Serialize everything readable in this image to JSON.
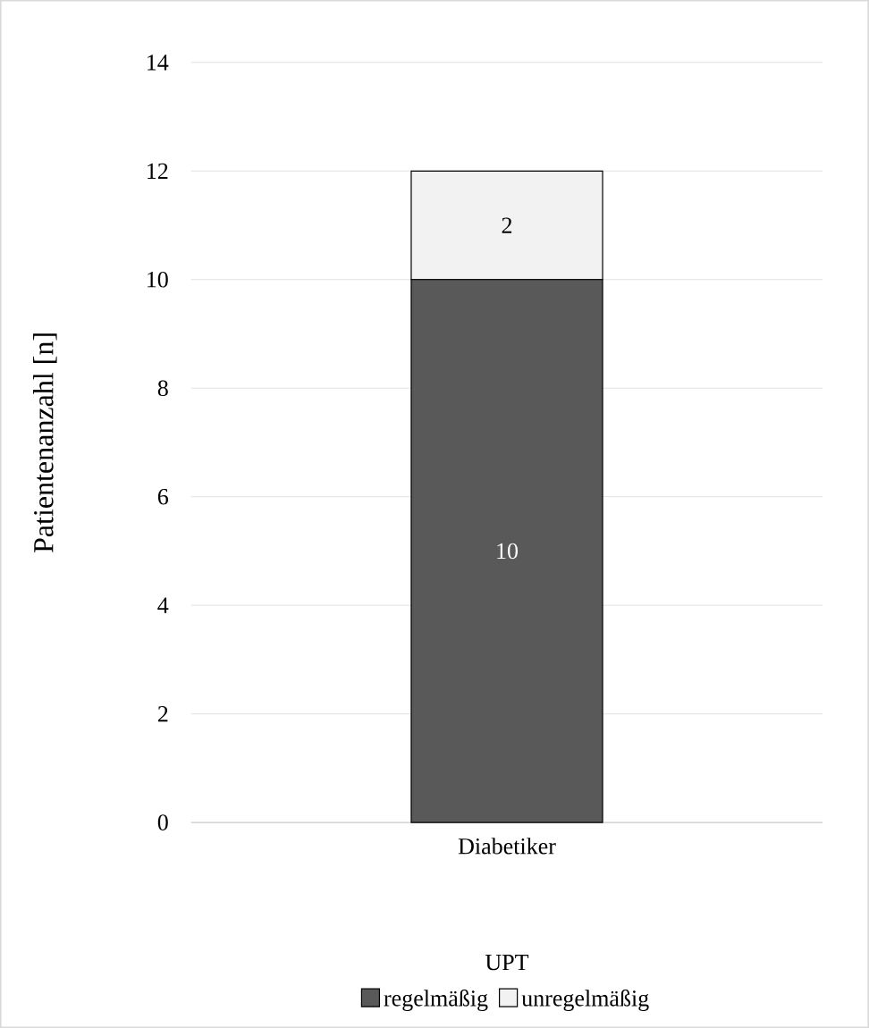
{
  "chart_data": {
    "type": "bar",
    "stacked": true,
    "ylabel": "Patientenanzahl [n]",
    "legend_title": "UPT",
    "categories": [
      "Diabetiker"
    ],
    "series": [
      {
        "name": "regelmäßig",
        "color": "#595959",
        "values": [
          10
        ]
      },
      {
        "name": "unregelmäßig",
        "color": "#f2f2f2",
        "values": [
          2
        ]
      }
    ],
    "ylim": [
      0,
      14
    ],
    "yticks": [
      0,
      2,
      4,
      6,
      8,
      10,
      12,
      14
    ],
    "grid": "y",
    "legend": "bottom",
    "data_labels": true
  }
}
